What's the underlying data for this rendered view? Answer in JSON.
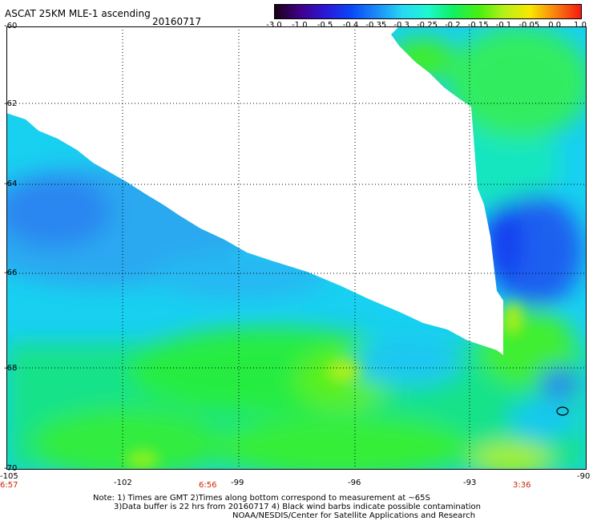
{
  "header": {
    "title": "ASCAT 25KM MLE-1 ascending",
    "date": "20160717"
  },
  "colorbar": {
    "labels": [
      "-3.0",
      "-1.0",
      "-0.5",
      "-0.4",
      "-0.35",
      "-0.3",
      "-0.25",
      "-0.2",
      "-0.15",
      "-0.1",
      "-0.05",
      "0.0",
      "1.0"
    ],
    "stops": [
      "#1a0015",
      "#40008a",
      "#2a18d8",
      "#0a48f8",
      "#1a8cf8",
      "#28d8f4",
      "#1cf8d0",
      "#10f060",
      "#48f010",
      "#b8f018",
      "#f8e800",
      "#f88010",
      "#f81810"
    ]
  },
  "map": {
    "lat_labels": [
      "-60",
      "-62",
      "-64",
      "-66",
      "-68",
      "-70"
    ],
    "lon_labels": [
      "-105",
      "-102",
      "-99",
      "-96",
      "-93",
      "-90"
    ],
    "time_labels": [
      "6:57",
      "6:56",
      "3:36"
    ],
    "lat_range": [
      -70,
      -60
    ],
    "lon_range": [
      -105,
      -90
    ]
  },
  "notes": {
    "line1": "Note: 1) Times are GMT 2)Times along bottom correspond to measurement at ~65S",
    "line2": "3)Data buffer is 22 hrs from 20160717 4) Black wind barbs indicate possible contamination",
    "line3": "NOAA/NESDIS/Center for Satellite Applications and Research"
  }
}
